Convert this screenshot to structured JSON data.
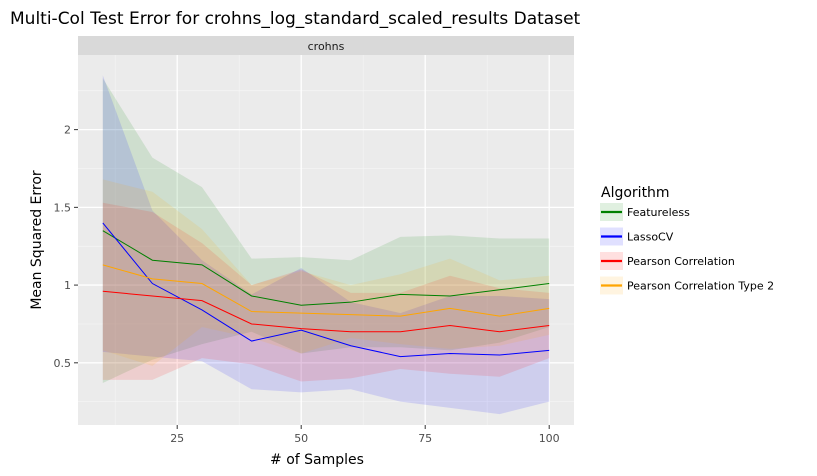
{
  "chart_data": {
    "type": "line",
    "title": "Multi-Col Test Error for crohns_log_standard_scaled_results Dataset",
    "facet_label": "crohns",
    "xlabel": "# of Samples",
    "ylabel": "Mean Squared Error",
    "xlim": [
      5,
      105
    ],
    "ylim": [
      0.1,
      2.48
    ],
    "x_ticks": [
      25,
      50,
      75,
      100
    ],
    "y_ticks": [
      0.5,
      1,
      1.5,
      2
    ],
    "y_tick_labels": [
      "0.5",
      "1",
      "1.5",
      "2"
    ],
    "grid": true,
    "legend_position": "right",
    "legend_title": "Algorithm",
    "x": [
      10,
      20,
      30,
      40,
      50,
      60,
      70,
      80,
      90,
      100
    ],
    "series": [
      {
        "name": "Featureless",
        "color": "#008000",
        "values": [
          1.35,
          1.16,
          1.13,
          0.93,
          0.87,
          0.89,
          0.94,
          0.93,
          0.97,
          1.01
        ],
        "lower": [
          0.37,
          0.52,
          0.62,
          0.7,
          0.56,
          0.6,
          0.6,
          0.58,
          0.63,
          0.73
        ],
        "upper": [
          2.33,
          1.82,
          1.63,
          1.17,
          1.18,
          1.16,
          1.31,
          1.32,
          1.3,
          1.3
        ]
      },
      {
        "name": "LassoCV",
        "color": "#0000ff",
        "values": [
          1.4,
          1.01,
          0.84,
          0.64,
          0.71,
          0.61,
          0.54,
          0.56,
          0.55,
          0.58
        ],
        "lower": [
          0.57,
          0.54,
          0.51,
          0.33,
          0.31,
          0.33,
          0.25,
          0.21,
          0.17,
          0.25
        ],
        "upper": [
          2.35,
          1.48,
          1.16,
          0.94,
          1.11,
          0.89,
          0.82,
          0.93,
          0.93,
          0.91
        ]
      },
      {
        "name": "Pearson Correlation",
        "color": "#ff0000",
        "values": [
          0.96,
          0.93,
          0.9,
          0.75,
          0.72,
          0.7,
          0.7,
          0.74,
          0.7,
          0.74
        ],
        "lower": [
          0.39,
          0.39,
          0.53,
          0.49,
          0.38,
          0.4,
          0.46,
          0.43,
          0.41,
          0.53
        ],
        "upper": [
          1.53,
          1.47,
          1.27,
          1.0,
          1.1,
          0.95,
          0.95,
          1.06,
          0.98,
          0.95
        ]
      },
      {
        "name": "Pearson Correlation Type 2",
        "color": "#ffa500",
        "values": [
          1.13,
          1.04,
          1.01,
          0.83,
          0.82,
          0.81,
          0.8,
          0.85,
          0.8,
          0.85
        ],
        "lower": [
          0.58,
          0.48,
          0.73,
          0.66,
          0.56,
          0.66,
          0.62,
          0.59,
          0.61,
          0.68
        ],
        "upper": [
          1.68,
          1.6,
          1.36,
          1.0,
          1.09,
          1.0,
          1.07,
          1.17,
          1.03,
          1.06
        ]
      }
    ]
  }
}
